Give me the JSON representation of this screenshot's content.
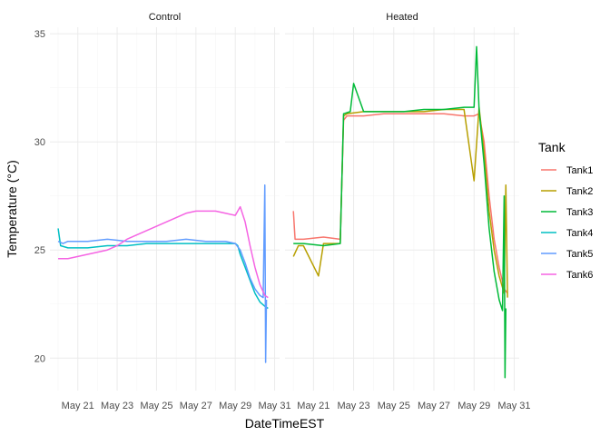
{
  "chart_data": {
    "type": "line",
    "facets": [
      {
        "name": "Control",
        "series": [
          "Tank4",
          "Tank5",
          "Tank6"
        ]
      },
      {
        "name": "Heated",
        "series": [
          "Tank1",
          "Tank2",
          "Tank3"
        ]
      }
    ],
    "xlabel": "DateTimeEST",
    "ylabel": "Temperature (°C)",
    "xlim": [
      "2023-05-19T14:00",
      "2023-05-31T06:00"
    ],
    "ylim": [
      18.5,
      35.3
    ],
    "x_ticks": [
      {
        "label": "May 21",
        "value": "2023-05-21T00:00"
      },
      {
        "label": "May 23",
        "value": "2023-05-23T00:00"
      },
      {
        "label": "May 25",
        "value": "2023-05-25T00:00"
      },
      {
        "label": "May 27",
        "value": "2023-05-27T00:00"
      },
      {
        "label": "May 29",
        "value": "2023-05-29T00:00"
      },
      {
        "label": "May 31",
        "value": "2023-05-31T00:00"
      }
    ],
    "y_ticks": [
      20,
      25,
      30,
      35
    ],
    "grid": true,
    "legend": {
      "title": "Tank",
      "position": "right",
      "entries": [
        {
          "name": "Tank1",
          "color": "#F8766D"
        },
        {
          "name": "Tank2",
          "color": "#B79F00"
        },
        {
          "name": "Tank3",
          "color": "#00BA38"
        },
        {
          "name": "Tank4",
          "color": "#00BFC4"
        },
        {
          "name": "Tank5",
          "color": "#619CFF"
        },
        {
          "name": "Tank6",
          "color": "#F564E3"
        }
      ]
    },
    "series": [
      {
        "name": "Tank4",
        "facet": "Control",
        "color": "#00BFC4",
        "x": [
          "2023-05-20T00:00",
          "2023-05-20T03:00",
          "2023-05-20T12:00",
          "2023-05-21T12:00",
          "2023-05-22T12:00",
          "2023-05-23T12:00",
          "2023-05-24T12:00",
          "2023-05-25T12:00",
          "2023-05-26T12:00",
          "2023-05-27T12:00",
          "2023-05-28T12:00",
          "2023-05-29T00:00",
          "2023-05-29T03:00",
          "2023-05-29T06:00",
          "2023-05-29T12:00",
          "2023-05-29T18:00",
          "2023-05-30T00:00",
          "2023-05-30T06:00",
          "2023-05-30T12:00",
          "2023-05-30T16:00"
        ],
        "y": [
          26.0,
          25.2,
          25.1,
          25.1,
          25.2,
          25.2,
          25.3,
          25.3,
          25.3,
          25.3,
          25.3,
          25.3,
          25.2,
          24.8,
          24.2,
          23.6,
          23.0,
          22.6,
          22.4,
          22.3
        ]
      },
      {
        "name": "Tank5",
        "facet": "Control",
        "color": "#619CFF",
        "x": [
          "2023-05-20T00:00",
          "2023-05-20T06:00",
          "2023-05-20T12:00",
          "2023-05-21T12:00",
          "2023-05-22T12:00",
          "2023-05-23T12:00",
          "2023-05-24T12:00",
          "2023-05-25T12:00",
          "2023-05-26T12:00",
          "2023-05-27T12:00",
          "2023-05-28T12:00",
          "2023-05-29T00:00",
          "2023-05-29T06:00",
          "2023-05-29T12:00",
          "2023-05-29T18:00",
          "2023-05-30T00:00",
          "2023-05-30T06:00",
          "2023-05-30T10:00",
          "2023-05-30T12:00",
          "2023-05-30T13:00",
          "2023-05-30T14:00"
        ],
        "y": [
          25.4,
          25.3,
          25.4,
          25.4,
          25.5,
          25.4,
          25.4,
          25.4,
          25.5,
          25.4,
          25.4,
          25.3,
          25.0,
          24.4,
          23.7,
          23.2,
          22.9,
          22.8,
          28.0,
          19.8,
          22.7
        ]
      },
      {
        "name": "Tank6",
        "facet": "Control",
        "color": "#F564E3",
        "x": [
          "2023-05-20T00:00",
          "2023-05-20T12:00",
          "2023-05-21T00:00",
          "2023-05-21T12:00",
          "2023-05-22T00:00",
          "2023-05-22T12:00",
          "2023-05-23T00:00",
          "2023-05-23T12:00",
          "2023-05-24T00:00",
          "2023-05-24T12:00",
          "2023-05-25T00:00",
          "2023-05-25T12:00",
          "2023-05-26T00:00",
          "2023-05-26T12:00",
          "2023-05-27T00:00",
          "2023-05-27T12:00",
          "2023-05-28T00:00",
          "2023-05-28T12:00",
          "2023-05-29T00:00",
          "2023-05-29T06:00",
          "2023-05-29T12:00",
          "2023-05-29T18:00",
          "2023-05-30T00:00",
          "2023-05-30T06:00",
          "2023-05-30T12:00",
          "2023-05-30T16:00"
        ],
        "y": [
          24.6,
          24.6,
          24.7,
          24.8,
          24.9,
          25.0,
          25.2,
          25.5,
          25.7,
          25.9,
          26.1,
          26.3,
          26.5,
          26.7,
          26.8,
          26.8,
          26.8,
          26.7,
          26.6,
          27.0,
          26.3,
          25.2,
          24.2,
          23.4,
          22.9,
          22.8
        ]
      },
      {
        "name": "Tank1",
        "facet": "Heated",
        "color": "#F8766D",
        "x": [
          "2023-05-20T00:00",
          "2023-05-20T02:00",
          "2023-05-20T12:00",
          "2023-05-21T12:00",
          "2023-05-22T08:00",
          "2023-05-22T12:00",
          "2023-05-22T16:00",
          "2023-05-23T12:00",
          "2023-05-24T12:00",
          "2023-05-25T12:00",
          "2023-05-26T12:00",
          "2023-05-27T12:00",
          "2023-05-28T12:00",
          "2023-05-29T00:00",
          "2023-05-29T06:00",
          "2023-05-29T12:00",
          "2023-05-29T18:00",
          "2023-05-30T00:00",
          "2023-05-30T06:00",
          "2023-05-30T12:00",
          "2023-05-30T16:00"
        ],
        "y": [
          26.8,
          25.5,
          25.5,
          25.6,
          25.5,
          31.0,
          31.2,
          31.2,
          31.3,
          31.3,
          31.3,
          31.3,
          31.2,
          31.2,
          31.3,
          30.0,
          27.5,
          25.5,
          24.2,
          23.2,
          23.0
        ]
      },
      {
        "name": "Tank2",
        "facet": "Heated",
        "color": "#B79F00",
        "x": [
          "2023-05-20T00:00",
          "2023-05-20T06:00",
          "2023-05-20T12:00",
          "2023-05-21T06:00",
          "2023-05-21T12:00",
          "2023-05-22T08:00",
          "2023-05-22T12:00",
          "2023-05-22T16:00",
          "2023-05-23T12:00",
          "2023-05-24T12:00",
          "2023-05-25T12:00",
          "2023-05-26T12:00",
          "2023-05-27T12:00",
          "2023-05-28T12:00",
          "2023-05-29T00:00",
          "2023-05-29T06:00",
          "2023-05-29T12:00",
          "2023-05-29T18:00",
          "2023-05-30T00:00",
          "2023-05-30T06:00",
          "2023-05-30T12:00",
          "2023-05-30T14:00",
          "2023-05-30T16:00"
        ],
        "y": [
          24.7,
          25.2,
          25.2,
          23.8,
          25.3,
          25.3,
          31.2,
          31.3,
          31.4,
          31.4,
          31.4,
          31.4,
          31.5,
          31.5,
          28.2,
          31.6,
          29.5,
          26.8,
          25.0,
          23.8,
          23.0,
          28.0,
          22.8
        ]
      },
      {
        "name": "Tank3",
        "facet": "Heated",
        "color": "#00BA38",
        "x": [
          "2023-05-20T00:00",
          "2023-05-20T12:00",
          "2023-05-21T12:00",
          "2023-05-22T08:00",
          "2023-05-22T12:00",
          "2023-05-22T20:00",
          "2023-05-23T00:00",
          "2023-05-23T12:00",
          "2023-05-24T12:00",
          "2023-05-25T12:00",
          "2023-05-26T12:00",
          "2023-05-27T12:00",
          "2023-05-28T12:00",
          "2023-05-29T00:00",
          "2023-05-29T03:00",
          "2023-05-29T06:00",
          "2023-05-29T12:00",
          "2023-05-29T18:00",
          "2023-05-30T00:00",
          "2023-05-30T06:00",
          "2023-05-30T10:00",
          "2023-05-30T12:00",
          "2023-05-30T13:00",
          "2023-05-30T14:00"
        ],
        "y": [
          25.3,
          25.3,
          25.2,
          25.3,
          31.3,
          31.4,
          32.7,
          31.4,
          31.4,
          31.4,
          31.5,
          31.5,
          31.6,
          31.6,
          34.4,
          31.5,
          29.0,
          26.0,
          24.0,
          22.7,
          22.2,
          27.5,
          19.1,
          22.3
        ]
      }
    ]
  }
}
